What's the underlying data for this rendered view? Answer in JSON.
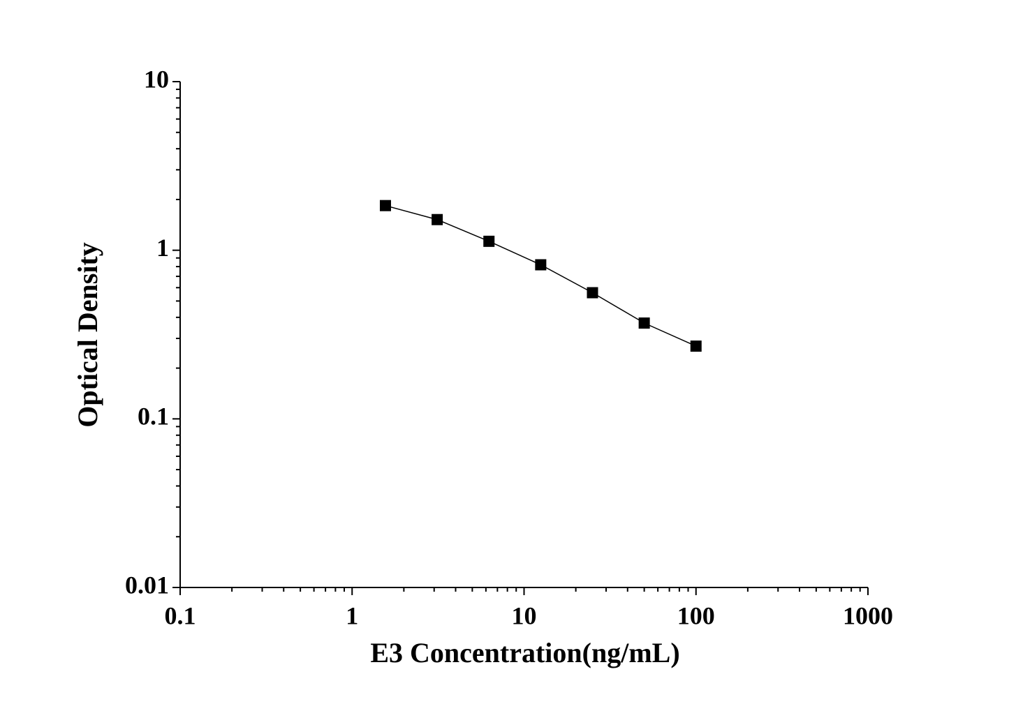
{
  "chart_data": {
    "type": "line",
    "x_label": "E3 Concentration(ng/mL)",
    "y_label": "Optical Density",
    "x": [
      1.5625,
      3.125,
      6.25,
      12.5,
      25,
      50,
      100
    ],
    "series": [
      {
        "color": "#000000",
        "marker": "square",
        "values": [
          1.84,
          1.52,
          1.13,
          0.82,
          0.56,
          0.37,
          0.27
        ]
      }
    ],
    "log_x": true,
    "log_y": true,
    "xlim": [
      0.1,
      1000
    ],
    "xticks": [
      0.1,
      1,
      10,
      100,
      1000
    ],
    "ylim": [
      0.01,
      10
    ],
    "yticks": [
      0.01,
      0.1,
      1,
      10
    ]
  }
}
